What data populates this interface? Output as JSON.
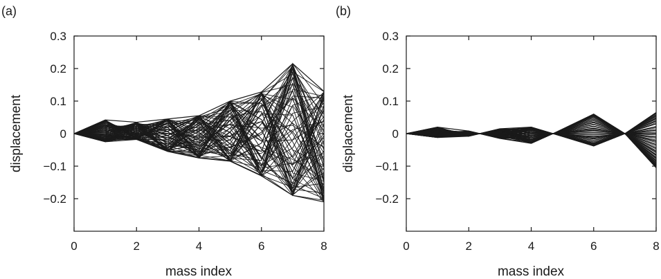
{
  "chart_data": [
    {
      "type": "line",
      "panel_label": "(a)",
      "xlabel": "mass index",
      "ylabel": "displacement",
      "xlim": [
        0,
        8
      ],
      "ylim": [
        -0.3,
        0.3
      ],
      "xticks": [
        0,
        2,
        4,
        6,
        8
      ],
      "xtick_labels": [
        "0",
        "2",
        "4",
        "6",
        "8"
      ],
      "yticks": [
        0.3,
        0.2,
        0.1,
        0,
        -0.1,
        -0.2
      ],
      "ytick_labels": [
        "0.3",
        "0.2",
        "0.1",
        "0",
        "−0.1",
        "−0.2"
      ],
      "grid": false,
      "line_color": "#1a1a1a",
      "x": [
        0,
        1,
        2,
        3,
        4,
        5,
        6,
        7,
        8
      ],
      "envelope_upper": [
        0,
        0.042,
        0.035,
        0.045,
        0.055,
        0.1,
        0.128,
        0.215,
        0.13
      ],
      "envelope_lower": [
        0,
        -0.025,
        -0.018,
        -0.055,
        -0.075,
        -0.085,
        -0.13,
        -0.19,
        -0.21
      ],
      "curve_count": 80
    },
    {
      "type": "line",
      "panel_label": "(b)",
      "xlabel": "mass index",
      "ylabel": "displacement",
      "xlim": [
        0,
        8
      ],
      "ylim": [
        -0.3,
        0.3
      ],
      "xticks": [
        0,
        2,
        4,
        6,
        8
      ],
      "xtick_labels": [
        "0",
        "2",
        "4",
        "6",
        "8"
      ],
      "yticks": [
        0.3,
        0.2,
        0.1,
        0,
        -0.1,
        -0.2
      ],
      "ytick_labels": [
        "0.3",
        "0.2",
        "0.1",
        "0",
        "−0.1",
        "−0.2"
      ],
      "grid": false,
      "line_color": "#1a1a1a",
      "x": [
        0,
        1,
        2,
        2.35,
        3,
        4,
        4.7,
        6,
        7,
        8
      ],
      "envelope_upper": [
        0,
        0.02,
        0.008,
        0,
        0.015,
        0.02,
        0,
        0.06,
        0,
        0.065
      ],
      "envelope_lower": [
        0,
        -0.012,
        -0.008,
        0,
        -0.015,
        -0.03,
        0,
        -0.038,
        0,
        -0.105
      ],
      "curve_count": 80
    }
  ]
}
